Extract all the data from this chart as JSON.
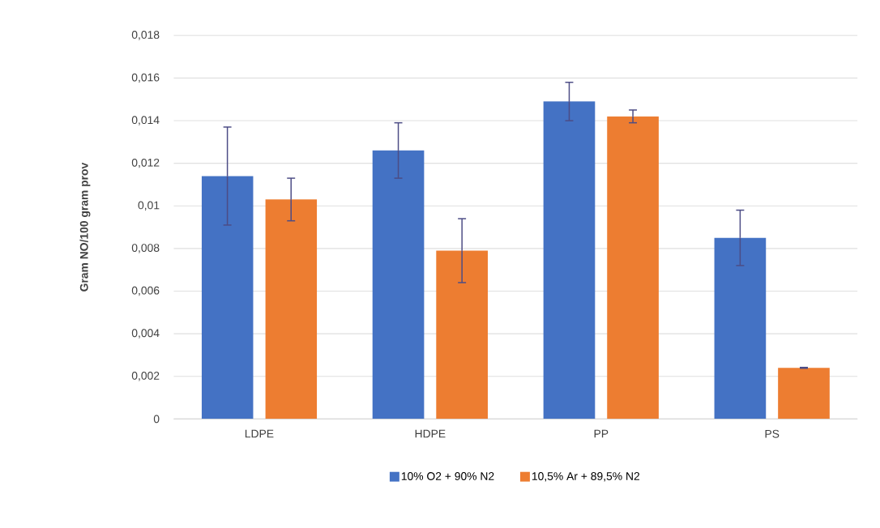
{
  "chart_data": {
    "type": "bar",
    "ylabel": "Gram NO/100 gram prov",
    "categories": [
      "LDPE",
      "HDPE",
      "PP",
      "PS"
    ],
    "series": [
      {
        "name": "10% O2 + 90% N2",
        "color": "#4472c4",
        "values": [
          0.0114,
          0.0126,
          0.0149,
          0.0085
        ],
        "errors": [
          0.0023,
          0.0013,
          0.0009,
          0.0013
        ]
      },
      {
        "name": "10,5% Ar + 89,5% N2",
        "color": "#ed7d31",
        "values": [
          0.0103,
          0.0079,
          0.0142,
          0.0024
        ],
        "errors": [
          0.001,
          0.0015,
          0.0003,
          2e-05
        ]
      }
    ],
    "ylim": [
      0,
      0.018
    ],
    "yticks": [
      0,
      {
        "value": 0.002,
        "label": "0,002"
      },
      {
        "value": 0.004,
        "label": "0,004"
      },
      {
        "value": 0.006,
        "label": "0,006"
      },
      {
        "value": 0.008,
        "label": "0,008"
      },
      {
        "value": 0.01,
        "label": "0,01"
      },
      {
        "value": 0.012,
        "label": "0,012"
      },
      {
        "value": 0.014,
        "label": "0,014"
      },
      {
        "value": 0.016,
        "label": "0,016"
      },
      {
        "value": 0.018,
        "label": "0,018"
      }
    ],
    "grid": "y",
    "legend": "bottom"
  }
}
